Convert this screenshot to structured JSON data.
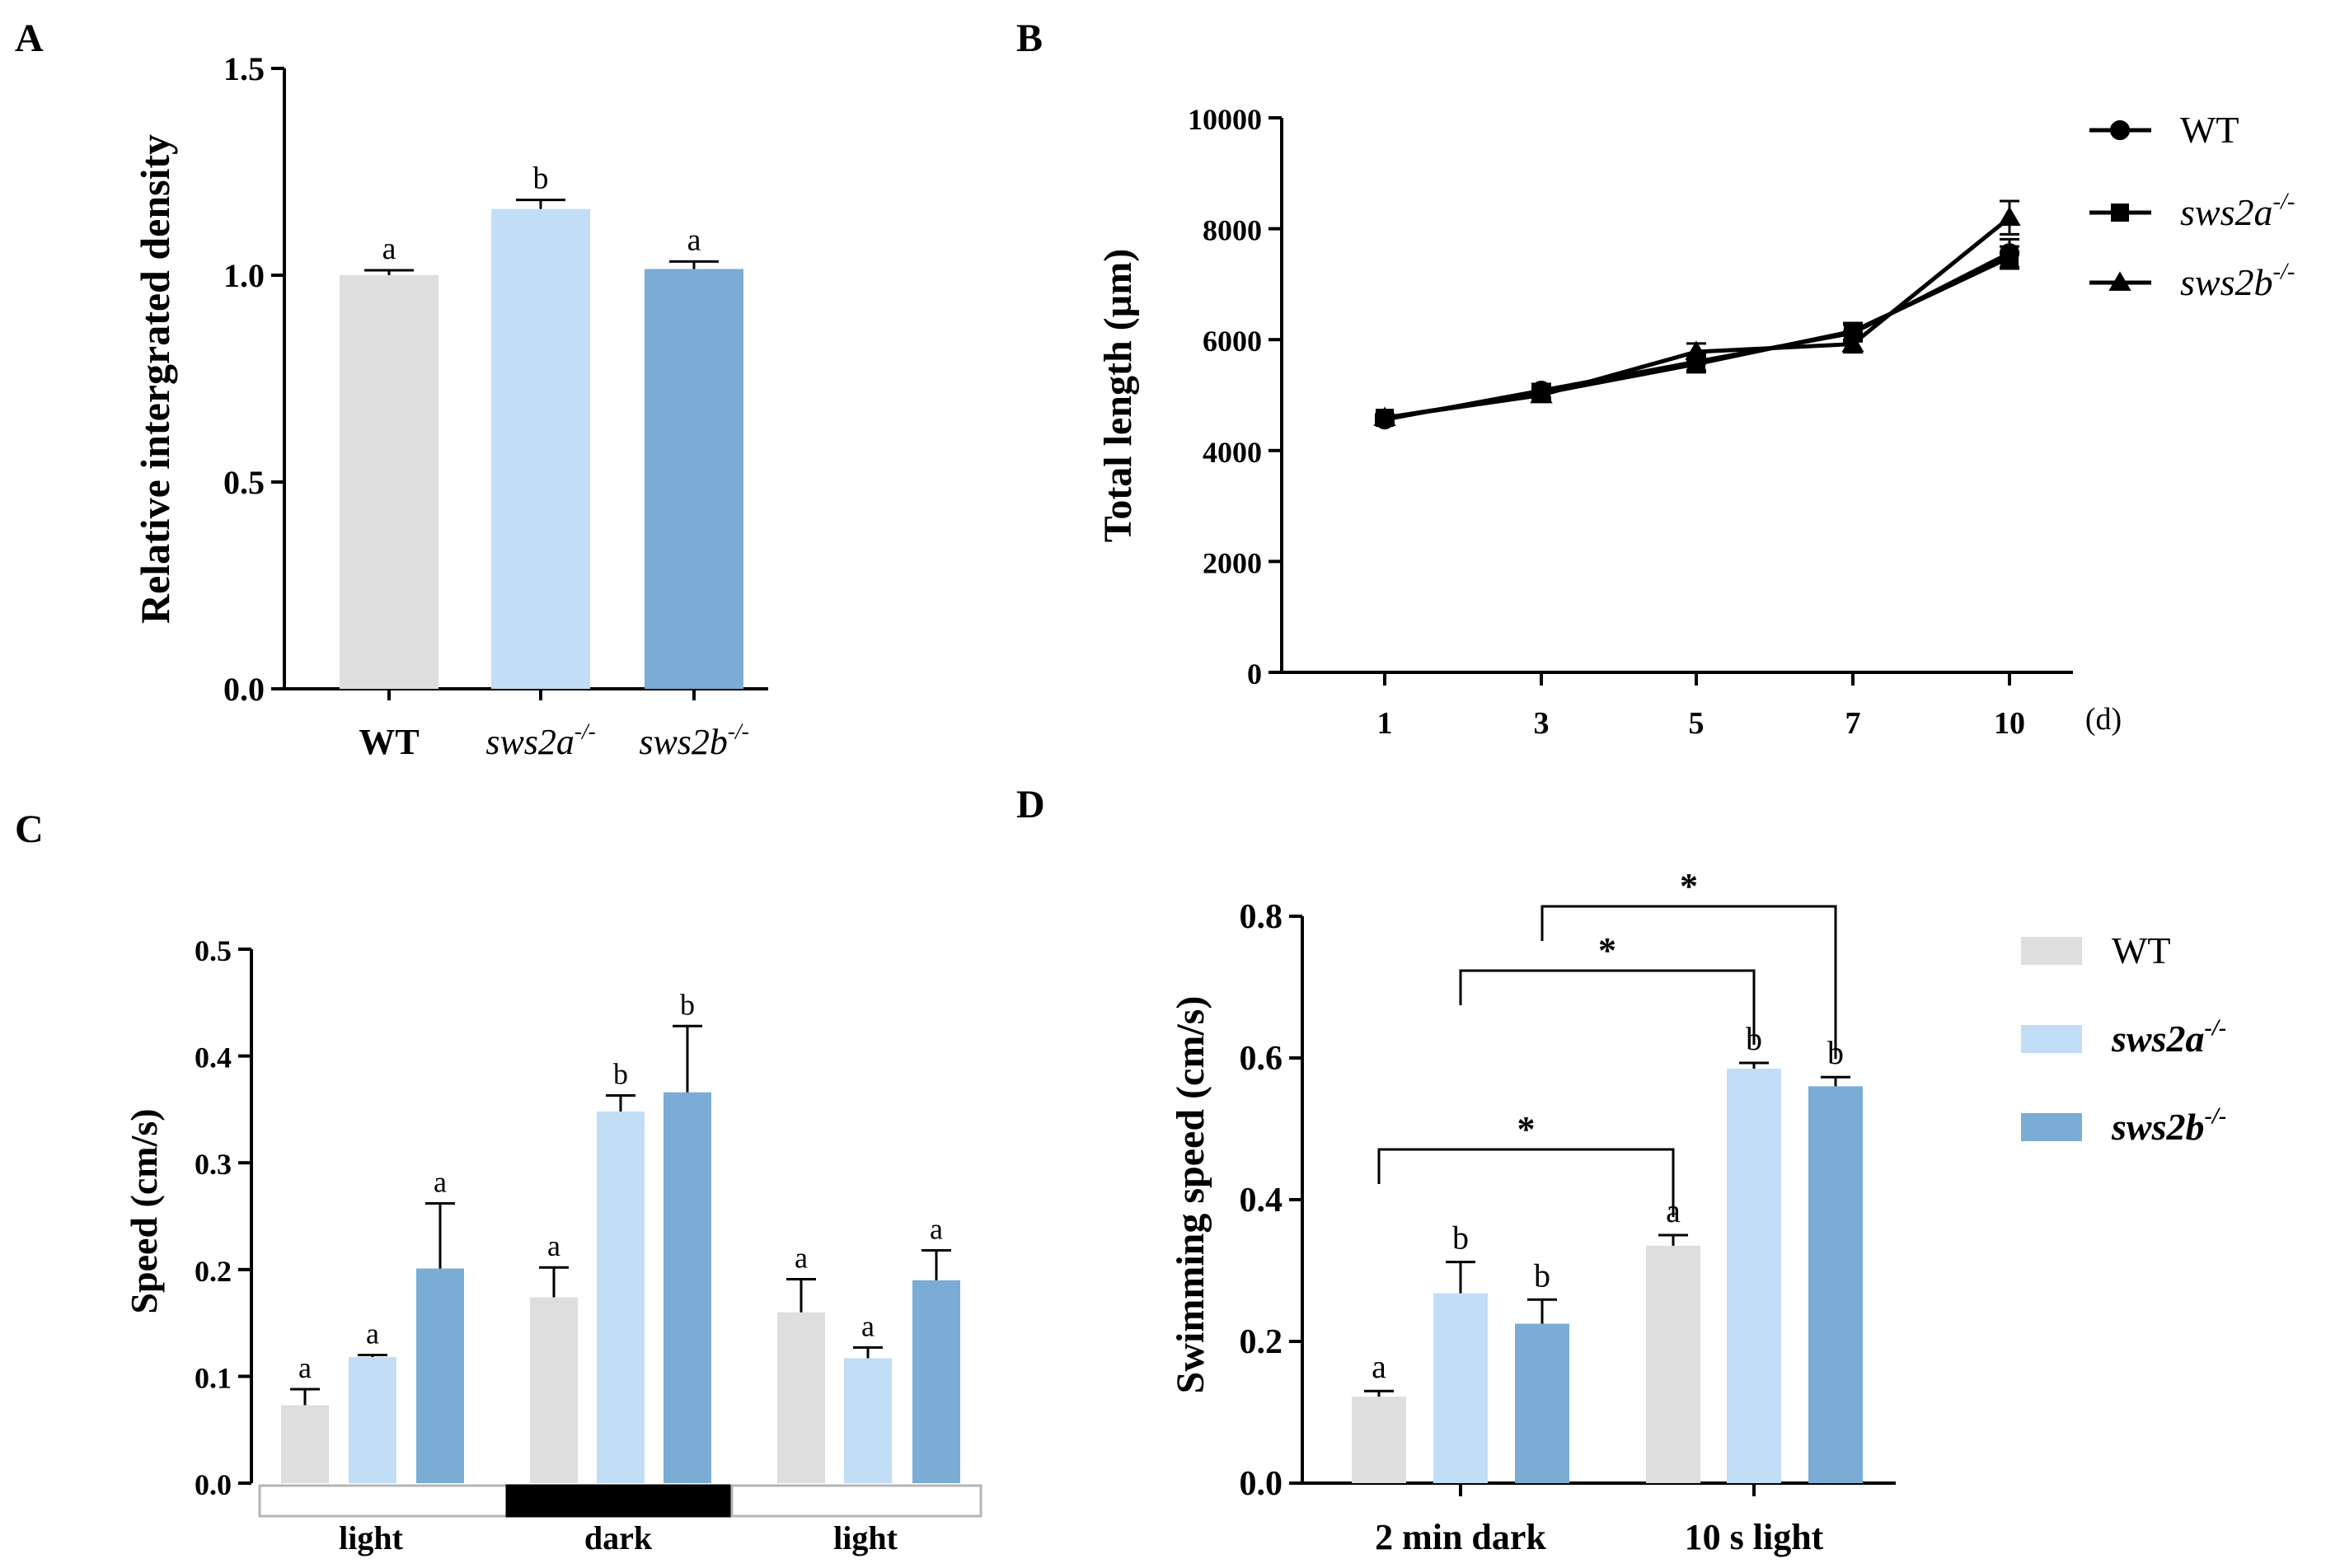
{
  "figure_title": "",
  "colors": {
    "wt": "#dedede",
    "sws2a": "#c2ddf6",
    "sws2b": "#7aacd6",
    "ink": "#000000"
  },
  "chart_data": [
    {
      "panel": "A",
      "type": "bar",
      "ylabel": "Relative intergrated density",
      "ylim": [
        0,
        1.5
      ],
      "yticks": [
        "0.0",
        "0.5",
        "1.0",
        "1.5"
      ],
      "bars": [
        {
          "label": "WT",
          "label_base": "WT",
          "label_sup": "",
          "value": 1.0,
          "err": 0.012,
          "letter": "a",
          "color_key": "wt"
        },
        {
          "label": "sws2a-/-",
          "label_base": "sws2a",
          "label_sup": "-/-",
          "value": 1.16,
          "err": 0.022,
          "letter": "b",
          "color_key": "sws2a"
        },
        {
          "label": "sws2b-/-",
          "label_base": "sws2b",
          "label_sup": "-/-",
          "value": 1.015,
          "err": 0.018,
          "letter": "a",
          "color_key": "sws2b"
        }
      ]
    },
    {
      "panel": "B",
      "type": "line",
      "ylabel": "Total length (µm)",
      "xunit": "(d)",
      "ylim": [
        0,
        10000
      ],
      "yticks": [
        "0",
        "2000",
        "4000",
        "6000",
        "8000",
        "10000"
      ],
      "x": [
        "1",
        "3",
        "5",
        "7",
        "10"
      ],
      "series": [
        {
          "name": "WT",
          "name_base": "WT",
          "name_sup": "",
          "marker": "circle",
          "values": [
            4560,
            5080,
            5600,
            6120,
            7560
          ],
          "err": [
            60,
            120,
            150,
            150,
            250
          ]
        },
        {
          "name": "sws2a-/-",
          "name_base": "sws2a",
          "name_sup": "-/-",
          "marker": "square",
          "values": [
            4590,
            5030,
            5560,
            6150,
            7480
          ],
          "err": [
            60,
            120,
            150,
            150,
            200
          ]
        },
        {
          "name": "sws2b-/-",
          "name_base": "sws2b",
          "name_sup": "-/-",
          "marker": "triangle",
          "values": [
            4590,
            5000,
            5780,
            5920,
            8200
          ],
          "err": [
            60,
            120,
            150,
            150,
            300
          ]
        }
      ]
    },
    {
      "panel": "C",
      "type": "bar",
      "ylabel": "Speed (cm/s)",
      "ylim": [
        0,
        0.5
      ],
      "yticks": [
        "0.0",
        "0.1",
        "0.2",
        "0.3",
        "0.4",
        "0.5"
      ],
      "groups": [
        {
          "label": "light",
          "band": "light",
          "bars": [
            {
              "series": "WT",
              "value": 0.073,
              "err": 0.015,
              "letter": "a"
            },
            {
              "series": "sws2a-/-",
              "value": 0.118,
              "err": 0.002,
              "letter": "a"
            },
            {
              "series": "sws2b-/-",
              "value": 0.201,
              "err": 0.061,
              "letter": "a"
            }
          ]
        },
        {
          "label": "dark",
          "band": "dark",
          "bars": [
            {
              "series": "WT",
              "value": 0.174,
              "err": 0.028,
              "letter": "a"
            },
            {
              "series": "sws2a-/-",
              "value": 0.348,
              "err": 0.015,
              "letter": "b"
            },
            {
              "series": "sws2b-/-",
              "value": 0.366,
              "err": 0.062,
              "letter": "b"
            }
          ]
        },
        {
          "label": "light",
          "band": "light",
          "bars": [
            {
              "series": "WT",
              "value": 0.16,
              "err": 0.031,
              "letter": "a"
            },
            {
              "series": "sws2a-/-",
              "value": 0.117,
              "err": 0.01,
              "letter": "a"
            },
            {
              "series": "sws2b-/-",
              "value": 0.19,
              "err": 0.028,
              "letter": "a"
            }
          ]
        }
      ]
    },
    {
      "panel": "D",
      "type": "bar",
      "ylabel": "Swimming speed (cm/s)",
      "ylim": [
        0,
        0.8
      ],
      "yticks": [
        "0.0",
        "0.2",
        "0.4",
        "0.6",
        "0.8"
      ],
      "legend": [
        {
          "name": "WT",
          "name_base": "WT",
          "name_sup": "",
          "color_key": "wt"
        },
        {
          "name": "sws2a-/-",
          "name_base": "sws2a",
          "name_sup": "-/-",
          "color_key": "sws2a"
        },
        {
          "name": "sws2b-/-",
          "name_base": "sws2b",
          "name_sup": "-/-",
          "color_key": "sws2b"
        }
      ],
      "groups": [
        {
          "label": "2 min dark",
          "bars": [
            {
              "series": "WT",
              "value": 0.122,
              "err": 0.008,
              "letter": "a"
            },
            {
              "series": "sws2a-/-",
              "value": 0.268,
              "err": 0.044,
              "letter": "b"
            },
            {
              "series": "sws2b-/-",
              "value": 0.225,
              "err": 0.034,
              "letter": "b"
            }
          ]
        },
        {
          "label": "10 s light",
          "bars": [
            {
              "series": "WT",
              "value": 0.335,
              "err": 0.015,
              "letter": "a"
            },
            {
              "series": "sws2a-/-",
              "value": 0.585,
              "err": 0.008,
              "letter": "b"
            },
            {
              "series": "sws2b-/-",
              "value": 0.56,
              "err": 0.013,
              "letter": "b"
            }
          ]
        }
      ],
      "significance": [
        {
          "from": "2 min dark / WT",
          "to": "10 s light / WT",
          "mark": "*"
        },
        {
          "from": "2 min dark / sws2a-/-",
          "to": "10 s light / sws2a-/-",
          "mark": "*"
        },
        {
          "from": "2 min dark / sws2b-/-",
          "to": "10 s light / sws2b-/-",
          "mark": "*"
        }
      ]
    }
  ]
}
